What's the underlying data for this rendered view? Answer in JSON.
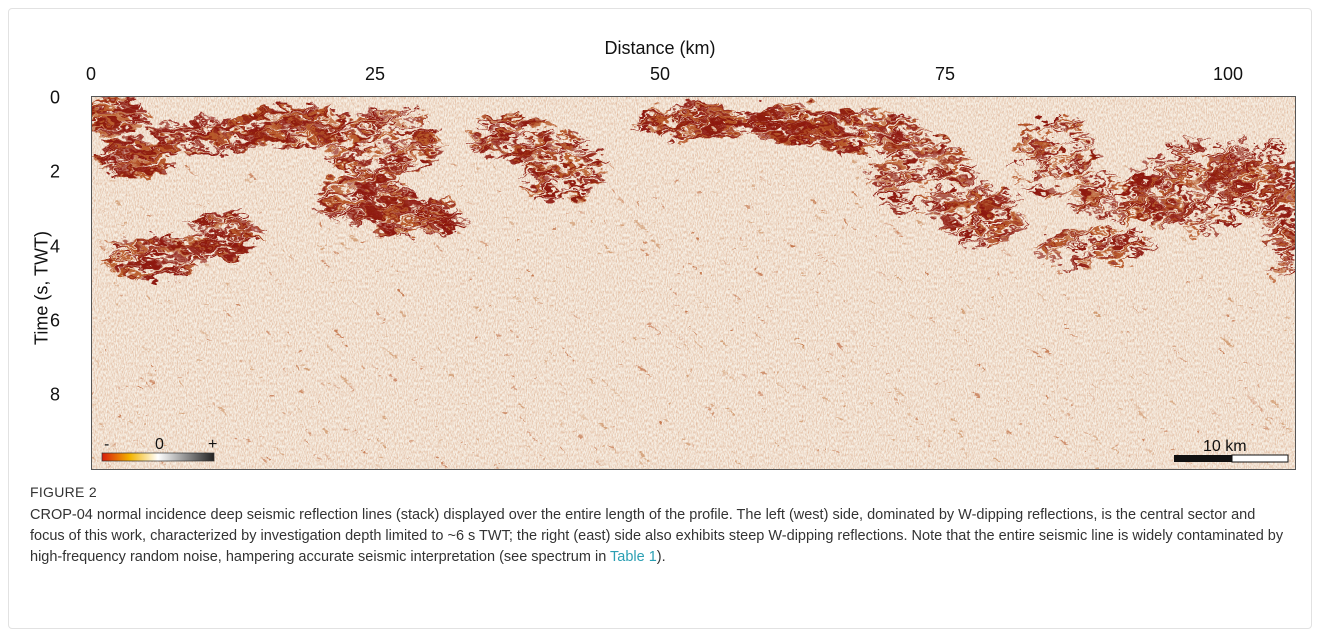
{
  "figure": {
    "x_axis_title": "Distance (km)",
    "y_axis_title": "Time (s, TWT)",
    "x_ticks": [
      "0",
      "25",
      "50",
      "75",
      "100"
    ],
    "y_ticks": [
      "0",
      "2",
      "4",
      "6",
      "8"
    ],
    "colorbar": {
      "min_label": "-",
      "mid_label": "0",
      "max_label": "+"
    },
    "scale_bar_label": "10 km",
    "colors": {
      "strong_reflection": "#8e1a0c",
      "medium": "#b85a2a",
      "background": "#f7efe4"
    }
  },
  "caption": {
    "label": "FIGURE 2",
    "text_before_link": "CROP-04 normal incidence deep seismic reflection lines (stack) displayed over the entire length of the profile. The left (west) side, dominated by W-dipping reflections, is the central sector and focus of this work, characterized by investigation depth limited to ~6 s TWT; the right (east) side also exhibits steep W-dipping reflections. Note that the entire seismic line is widely contaminated by high-frequency random noise, hampering accurate seismic interpretation (see spectrum in ",
    "link_text": "Table 1",
    "text_after_link": ")."
  }
}
